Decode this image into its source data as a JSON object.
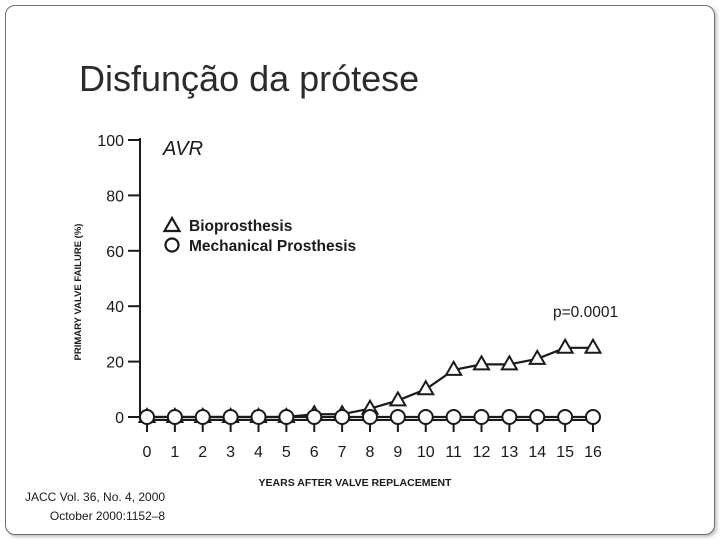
{
  "slide": {
    "title": "Disfunção da prótese",
    "citation_line1": "JACC Vol. 36, No. 4, 2000",
    "citation_line2": "October 2000:1152–8"
  },
  "chart_data": {
    "type": "line",
    "title": "AVR",
    "annotation": "p=0.0001",
    "xlabel": "YEARS AFTER VALVE REPLACEMENT",
    "ylabel": "PRIMARY VALVE FAILURE (%)",
    "x": [
      0,
      1,
      2,
      3,
      4,
      5,
      6,
      7,
      8,
      9,
      10,
      11,
      12,
      13,
      14,
      15,
      16
    ],
    "xticks": [
      "0",
      "1",
      "2",
      "3",
      "4",
      "5",
      "6",
      "7",
      "8",
      "9",
      "10",
      "11",
      "12",
      "13",
      "14",
      "15",
      "16"
    ],
    "yticks": [
      "0",
      "20",
      "40",
      "60",
      "80",
      "100"
    ],
    "ylim": [
      0,
      100
    ],
    "xlim": [
      0,
      16
    ],
    "grid": false,
    "legend_position": "upper-left",
    "series": [
      {
        "name": "Bioprosthesis",
        "marker": "triangle",
        "values": [
          0,
          0,
          0,
          0,
          0,
          0,
          1,
          1,
          3,
          6,
          10,
          17,
          19,
          19,
          21,
          25,
          25
        ]
      },
      {
        "name": "Mechanical Prosthesis",
        "marker": "circle",
        "values": [
          0,
          0,
          0,
          0,
          0,
          0,
          0,
          0,
          0,
          0,
          0,
          0,
          0,
          0,
          0,
          0,
          0
        ]
      }
    ],
    "colors": {
      "line": "#1a1a1a",
      "marker_fill": "#ffffff"
    }
  }
}
